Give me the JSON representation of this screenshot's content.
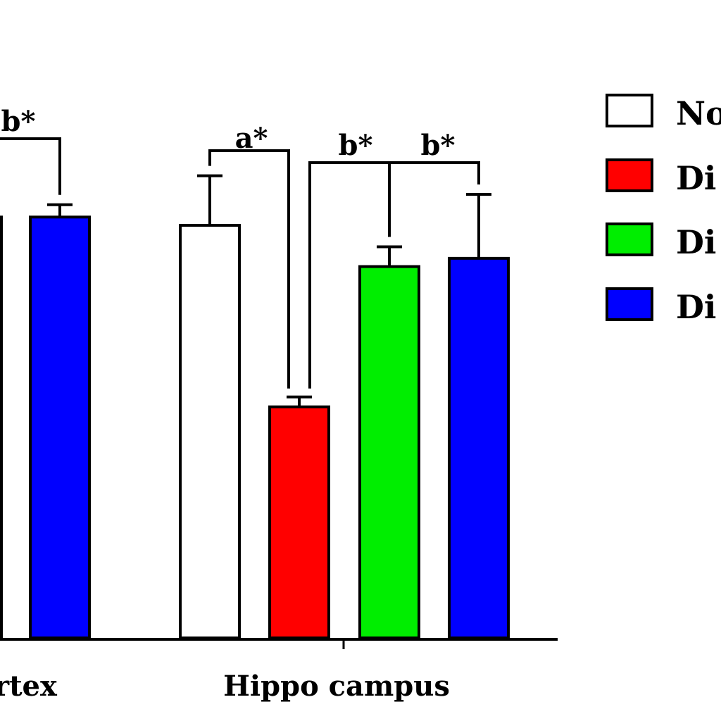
{
  "chart_data": {
    "type": "bar",
    "title": "",
    "xlabel": "",
    "ylabel": "",
    "categories": [
      "rtex",
      "Hippo campus"
    ],
    "series": [
      {
        "name": "No",
        "color": "#ffffff",
        "values": [
          null,
          100
        ],
        "errors": [
          null,
          12
        ]
      },
      {
        "name": "Di",
        "color": "#ff0000",
        "values": [
          null,
          56
        ],
        "errors": [
          null,
          2.4
        ]
      },
      {
        "name": "Di",
        "color": "#00ee00",
        "values": [
          null,
          90
        ],
        "errors": [
          null,
          4.8
        ]
      },
      {
        "name": "Di",
        "color": "#0000ff",
        "values": [
          102,
          92
        ],
        "errors": [
          3,
          15.5
        ]
      }
    ],
    "ylim": [
      0,
      170
    ],
    "grid": false,
    "legend_position": "top-right",
    "annotations": [
      {
        "text": "b*",
        "group": "rtex"
      },
      {
        "text": "a*",
        "group": "Hippo campus"
      },
      {
        "text": "b*",
        "group": "Hippo campus"
      },
      {
        "text": "b*",
        "group": "Hippo campus"
      }
    ],
    "left_partial_bar": {
      "value": 102
    }
  }
}
